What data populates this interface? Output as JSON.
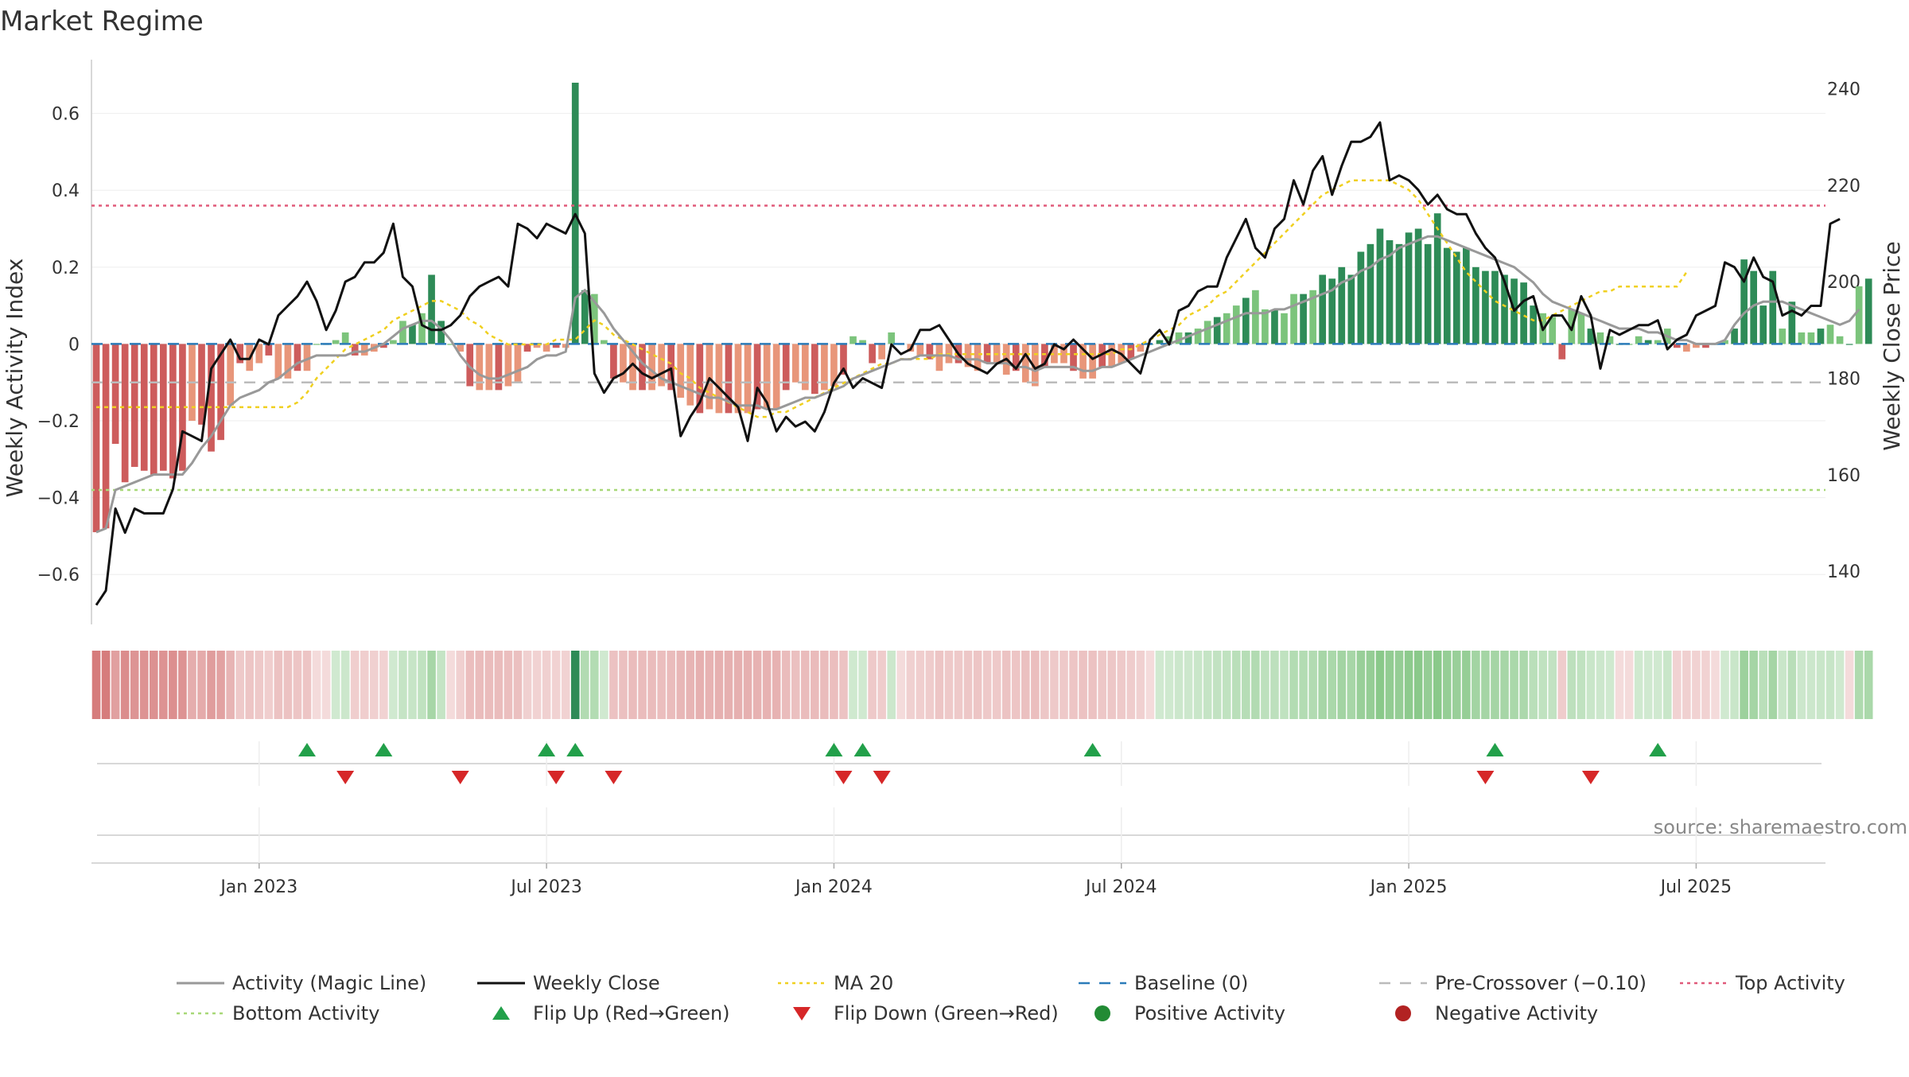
{
  "chart_data": {
    "type": "bar",
    "title": "Market Regime",
    "y_left_label": "Weekly Activity Index",
    "y_right_label": "Weekly Close Price",
    "source": "source: sharemaestro.com",
    "y_left_ticks": [
      {
        "value": 0.6,
        "label": "0.6"
      },
      {
        "value": 0.4,
        "label": "0.4"
      },
      {
        "value": 0.2,
        "label": "0.2"
      },
      {
        "value": 0,
        "label": "0"
      },
      {
        "value": -0.2,
        "label": "−0.2"
      },
      {
        "value": -0.4,
        "label": "−0.4"
      },
      {
        "value": -0.6,
        "label": "−0.6"
      }
    ],
    "y_right_ticks": [
      {
        "value": 240,
        "label": "240"
      },
      {
        "value": 220,
        "label": "220"
      },
      {
        "value": 200,
        "label": "200"
      },
      {
        "value": 180,
        "label": "180"
      },
      {
        "value": 160,
        "label": "160"
      },
      {
        "value": 140,
        "label": "140"
      }
    ],
    "y_left_range": [
      -0.73,
      0.74
    ],
    "y_right_range": [
      129,
      246
    ],
    "x_ticks": [
      {
        "week": 17,
        "label": "Jan 2023"
      },
      {
        "week": 47,
        "label": "Jul 2023"
      },
      {
        "week": 77,
        "label": "Jan 2024"
      },
      {
        "week": 107,
        "label": "Jul 2024"
      },
      {
        "week": 137,
        "label": "Jan 2025"
      },
      {
        "week": 167,
        "label": "Jul 2025"
      }
    ],
    "num_weeks": 181,
    "reference_lines": {
      "baseline": 0,
      "pre_crossover": -0.1,
      "top_activity": 0.36,
      "bottom_activity": -0.38
    },
    "activity_index": [
      -0.49,
      -0.48,
      -0.26,
      -0.36,
      -0.32,
      -0.33,
      -0.34,
      -0.33,
      -0.35,
      -0.33,
      -0.2,
      -0.21,
      -0.28,
      -0.25,
      -0.16,
      -0.05,
      -0.07,
      -0.05,
      -0.03,
      -0.09,
      -0.09,
      -0.07,
      -0.07,
      0.0,
      0.0,
      0.01,
      0.03,
      -0.03,
      -0.03,
      -0.02,
      -0.01,
      0.01,
      0.06,
      0.05,
      0.08,
      0.18,
      0.06,
      0.0,
      -0.02,
      -0.11,
      -0.12,
      -0.12,
      -0.12,
      -0.11,
      -0.1,
      -0.02,
      -0.01,
      -0.02,
      -0.01,
      -0.01,
      0.68,
      0.14,
      0.13,
      0.01,
      -0.09,
      -0.1,
      -0.12,
      -0.12,
      -0.12,
      -0.11,
      -0.12,
      -0.14,
      -0.16,
      -0.18,
      -0.17,
      -0.18,
      -0.18,
      -0.18,
      -0.18,
      -0.17,
      -0.17,
      -0.17,
      -0.12,
      -0.1,
      -0.12,
      -0.13,
      -0.12,
      -0.11,
      -0.08,
      0.02,
      0.01,
      -0.05,
      -0.04,
      0.03,
      0.0,
      -0.02,
      -0.03,
      -0.04,
      -0.07,
      -0.05,
      -0.05,
      -0.06,
      -0.07,
      -0.05,
      -0.05,
      -0.08,
      -0.07,
      -0.1,
      -0.11,
      -0.06,
      -0.05,
      -0.05,
      -0.07,
      -0.09,
      -0.09,
      -0.06,
      -0.06,
      -0.05,
      -0.04,
      -0.02,
      0.0,
      0.01,
      0.02,
      0.03,
      0.03,
      0.04,
      0.06,
      0.07,
      0.08,
      0.1,
      0.12,
      0.14,
      0.09,
      0.09,
      0.08,
      0.13,
      0.13,
      0.14,
      0.18,
      0.17,
      0.2,
      0.18,
      0.24,
      0.26,
      0.3,
      0.27,
      0.26,
      0.29,
      0.3,
      0.26,
      0.34,
      0.25,
      0.24,
      0.25,
      0.2,
      0.19,
      0.19,
      0.18,
      0.17,
      0.16,
      0.1,
      0.08,
      0.07,
      -0.04,
      0.09,
      0.08,
      0.04,
      0.03,
      0.02,
      0.0,
      0.0,
      0.02,
      0.01,
      0.01,
      0.04,
      -0.01,
      -0.02,
      -0.01,
      -0.01,
      0.0,
      0.01,
      0.04,
      0.22,
      0.19,
      0.1,
      0.19,
      0.04,
      0.11,
      0.03,
      0.03,
      0.04,
      0.05,
      0.02,
      0.0,
      0.15,
      0.17
    ],
    "weekly_close": [
      133,
      136,
      153,
      148,
      153,
      152,
      152,
      152,
      157,
      169,
      168,
      167,
      182,
      185,
      188,
      184,
      184,
      188,
      187,
      193,
      195,
      197,
      200,
      196,
      190,
      194,
      200,
      201,
      204,
      204,
      206,
      212,
      201,
      199,
      191,
      190,
      190,
      191,
      193,
      197,
      199,
      200,
      201,
      199,
      212,
      211,
      209,
      212,
      211,
      210,
      214,
      210,
      181,
      177,
      180,
      181,
      183,
      181,
      180,
      181,
      182,
      168,
      172,
      175,
      180,
      178,
      176,
      174,
      167,
      178,
      175,
      169,
      172,
      170,
      171,
      169,
      173,
      179,
      182,
      178,
      180,
      179,
      178,
      187,
      185,
      186,
      190,
      190,
      191,
      188,
      185,
      183,
      182,
      181,
      183,
      184,
      182,
      185,
      182,
      183,
      187,
      186,
      188,
      186,
      184,
      185,
      186,
      185,
      183,
      181,
      188,
      190,
      187,
      194,
      195,
      198,
      199,
      199,
      205,
      209,
      213,
      207,
      205,
      211,
      213,
      221,
      216,
      223,
      226,
      218,
      224,
      229,
      229,
      230,
      233,
      221,
      222,
      221,
      219,
      216,
      218,
      215,
      214,
      214,
      210,
      207,
      205,
      200,
      194,
      196,
      197,
      190,
      193,
      193,
      190,
      197,
      193,
      182,
      190,
      189,
      190,
      191,
      191,
      192,
      186,
      188,
      189,
      193,
      194,
      195,
      204,
      203,
      200,
      205,
      201,
      200,
      193,
      194,
      193,
      195,
      195,
      212,
      213
    ],
    "magic_line": [
      -0.49,
      -0.48,
      -0.38,
      -0.37,
      -0.36,
      -0.35,
      -0.34,
      -0.34,
      -0.34,
      -0.34,
      -0.31,
      -0.27,
      -0.24,
      -0.2,
      -0.16,
      -0.14,
      -0.13,
      -0.12,
      -0.1,
      -0.09,
      -0.07,
      -0.05,
      -0.04,
      -0.03,
      -0.03,
      -0.03,
      -0.03,
      -0.02,
      -0.02,
      -0.01,
      0.0,
      0.02,
      0.04,
      0.05,
      0.06,
      0.06,
      0.04,
      0.01,
      -0.03,
      -0.06,
      -0.08,
      -0.09,
      -0.09,
      -0.08,
      -0.07,
      -0.06,
      -0.04,
      -0.03,
      -0.03,
      -0.02,
      0.12,
      0.14,
      0.11,
      0.08,
      0.04,
      0.01,
      -0.02,
      -0.05,
      -0.07,
      -0.09,
      -0.1,
      -0.11,
      -0.12,
      -0.13,
      -0.14,
      -0.14,
      -0.15,
      -0.16,
      -0.16,
      -0.16,
      -0.17,
      -0.17,
      -0.16,
      -0.15,
      -0.14,
      -0.14,
      -0.13,
      -0.12,
      -0.11,
      -0.09,
      -0.08,
      -0.07,
      -0.06,
      -0.05,
      -0.04,
      -0.04,
      -0.03,
      -0.03,
      -0.03,
      -0.03,
      -0.04,
      -0.04,
      -0.04,
      -0.05,
      -0.05,
      -0.05,
      -0.06,
      -0.06,
      -0.07,
      -0.06,
      -0.06,
      -0.06,
      -0.06,
      -0.07,
      -0.07,
      -0.06,
      -0.06,
      -0.05,
      -0.04,
      -0.03,
      -0.02,
      -0.01,
      0.0,
      0.01,
      0.02,
      0.03,
      0.04,
      0.05,
      0.06,
      0.07,
      0.08,
      0.08,
      0.08,
      0.09,
      0.09,
      0.1,
      0.11,
      0.12,
      0.13,
      0.14,
      0.16,
      0.17,
      0.19,
      0.2,
      0.22,
      0.23,
      0.25,
      0.26,
      0.27,
      0.28,
      0.28,
      0.27,
      0.26,
      0.25,
      0.24,
      0.23,
      0.22,
      0.21,
      0.2,
      0.18,
      0.16,
      0.13,
      0.11,
      0.1,
      0.09,
      0.08,
      0.07,
      0.06,
      0.05,
      0.04,
      0.04,
      0.04,
      0.03,
      0.03,
      0.02,
      0.01,
      0.01,
      0.0,
      0.0,
      0.0,
      0.01,
      0.05,
      0.08,
      0.1,
      0.11,
      0.11,
      0.11,
      0.1,
      0.09,
      0.08,
      0.07,
      0.06,
      0.05,
      0.06,
      0.09
    ],
    "ma20": [
      174,
      174,
      174,
      174,
      174,
      174,
      174,
      174,
      174,
      174,
      174,
      174,
      174,
      174,
      174,
      174,
      174,
      174,
      174,
      174,
      174,
      175,
      177,
      180,
      182,
      184,
      186,
      187,
      188,
      189,
      190,
      192,
      193,
      194,
      195,
      196,
      196,
      195,
      194,
      192,
      191,
      189,
      188,
      187,
      187,
      187,
      187,
      187,
      188,
      188,
      188,
      190,
      192,
      191,
      189,
      188,
      187,
      186,
      185,
      184,
      183,
      181,
      180,
      178,
      177,
      176,
      175,
      174,
      173,
      172,
      172,
      173,
      173,
      174,
      175,
      176,
      177,
      178,
      179,
      180,
      181,
      182,
      183,
      183,
      184,
      184,
      184,
      184,
      185,
      185,
      185,
      185,
      185,
      185,
      185,
      185,
      185,
      185,
      185,
      185,
      185,
      185,
      185,
      185,
      185,
      185,
      185,
      186,
      186,
      187,
      188,
      189,
      190,
      191,
      193,
      194,
      195,
      197,
      198,
      200,
      202,
      204,
      206,
      208,
      210,
      212,
      214,
      216,
      218,
      219,
      220,
      221,
      221,
      221,
      221,
      221,
      220,
      219,
      217,
      214,
      211,
      208,
      205,
      202,
      200,
      198,
      196,
      195,
      194,
      193,
      192,
      192,
      193,
      194,
      195,
      196,
      197,
      198,
      198,
      199,
      199,
      199,
      199,
      199,
      199,
      199,
      202
    ],
    "flip_up_weeks": [
      22,
      30,
      47,
      50,
      77,
      80,
      104,
      146,
      163
    ],
    "flip_down_weeks": [
      26,
      38,
      48,
      54,
      78,
      82,
      145,
      156
    ]
  },
  "legend": [
    {
      "label": "Activity (Magic Line)",
      "kind": "line",
      "color": "#999999"
    },
    {
      "label": "Weekly Close",
      "kind": "line",
      "color": "#111111"
    },
    {
      "label": "MA 20",
      "kind": "dotted",
      "color": "#f0d020"
    },
    {
      "label": "Baseline (0)",
      "kind": "dash",
      "color": "#2b7bb9"
    },
    {
      "label": "Pre-Crossover (−0.10)",
      "kind": "dash",
      "color": "#bbbbbb"
    },
    {
      "label": "Top Activity",
      "kind": "dotted",
      "color": "#e05a7a"
    },
    {
      "label": "Bottom Activity",
      "kind": "dotted",
      "color": "#a8d878"
    },
    {
      "label": "Flip Up (Red→Green)",
      "kind": "tri-up",
      "color": "#22a04a"
    },
    {
      "label": "Flip Down (Green→Red)",
      "kind": "tri-down",
      "color": "#d62728"
    },
    {
      "label": "Positive Activity",
      "kind": "dot",
      "color": "#228b34"
    },
    {
      "label": "Negative Activity",
      "kind": "dot",
      "color": "#b22222"
    }
  ],
  "colors": {
    "positive_strong": "#2e8b57",
    "positive_light": "#7cc47c",
    "negative_strong": "#cd5c5c",
    "negative_light": "#e8967a",
    "weekly_close": "#111111",
    "magic_line": "#999999",
    "ma20": "#f0d020",
    "top_activity": "#e05a7a",
    "bottom_activity": "#a8d878",
    "baseline": "#2b7bb9",
    "pre_crossover": "#bbbbbb"
  }
}
